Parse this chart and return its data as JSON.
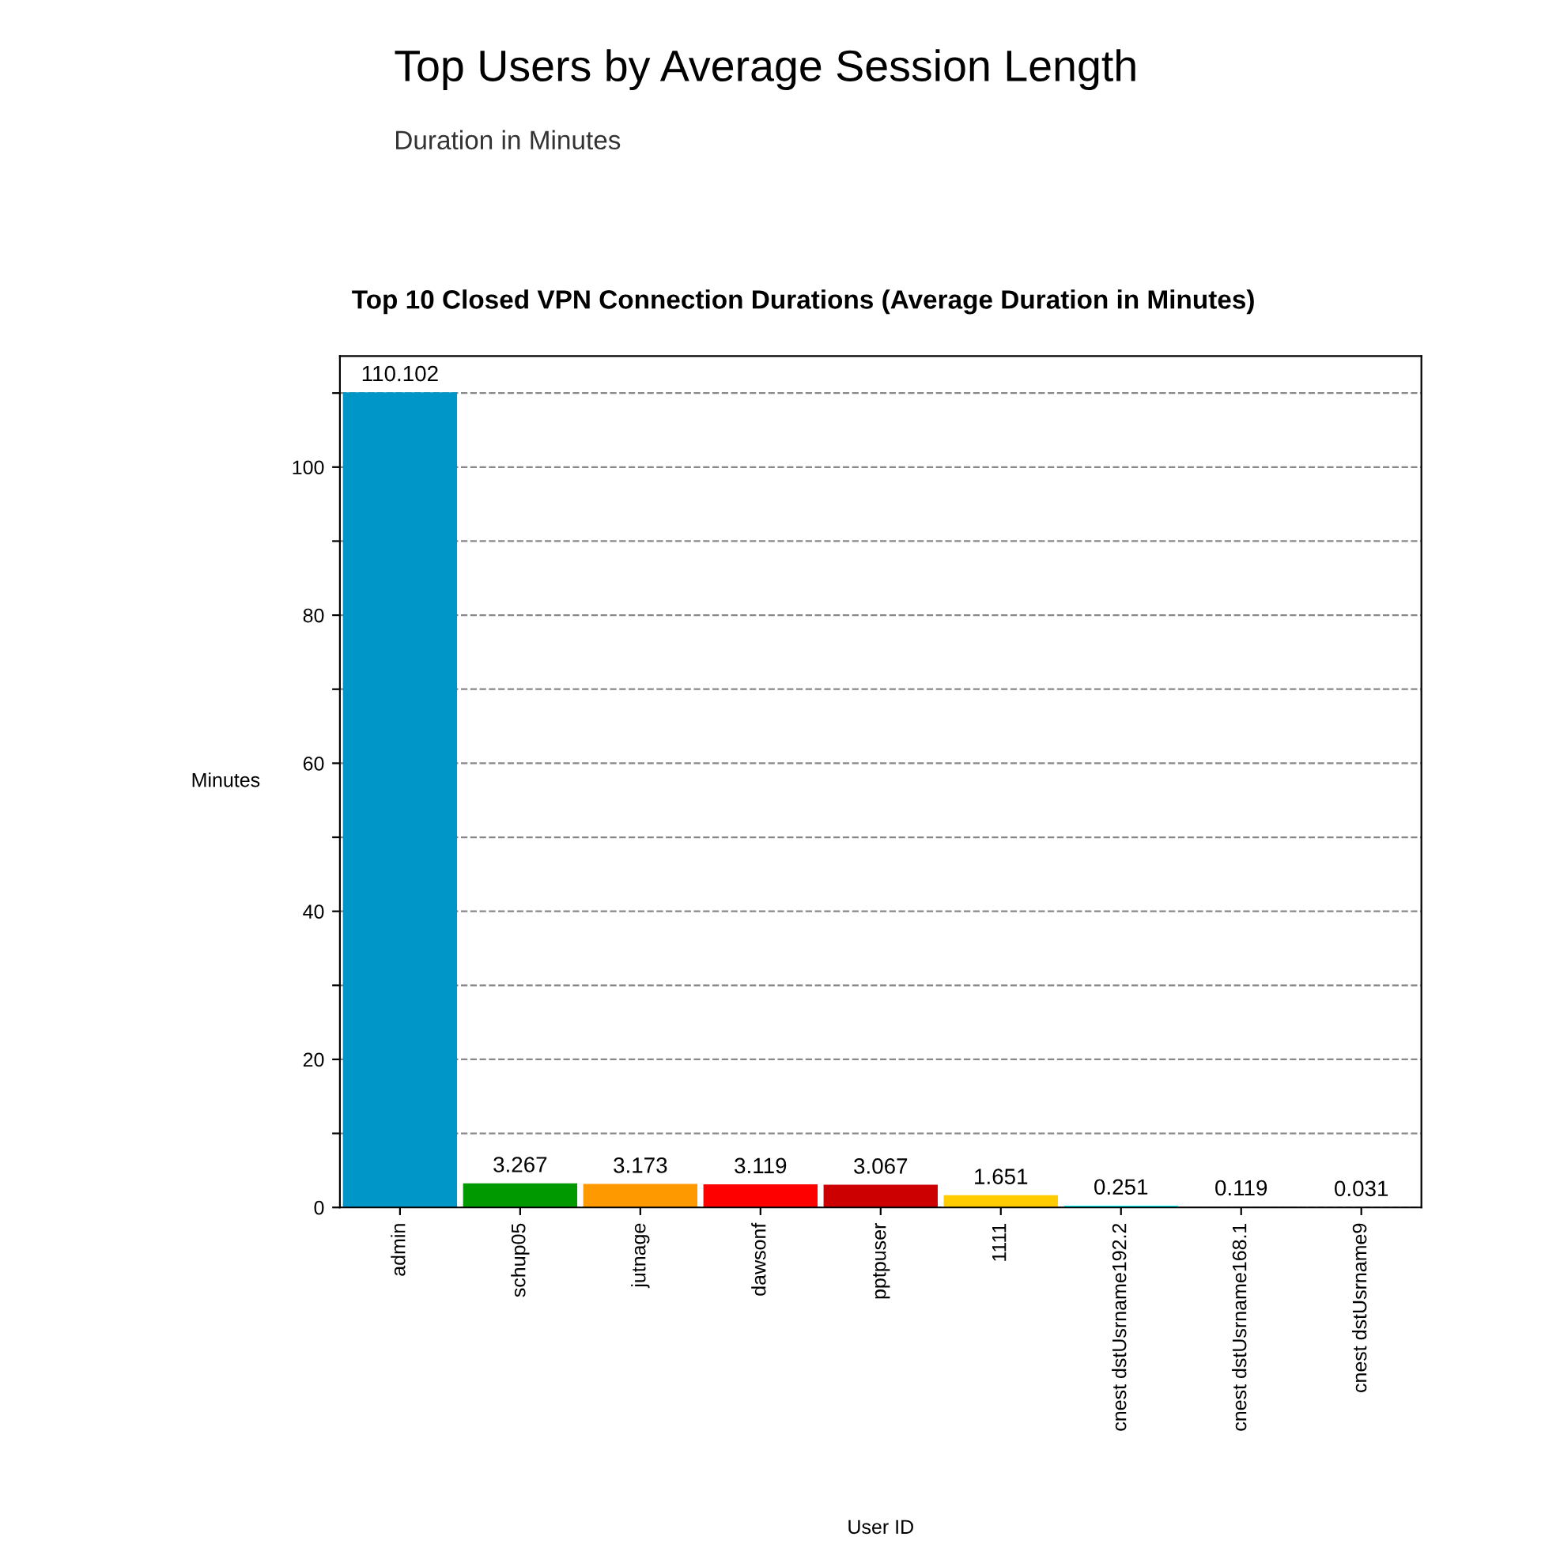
{
  "chart_data": {
    "type": "bar",
    "title": "Top Users by Average Session Length",
    "subtitle": "Duration in Minutes",
    "annotations": [
      "Top 10 Closed VPN Connection Durations (Average Duration in Minutes)"
    ],
    "xlabel": "User ID",
    "ylabel": "Minutes",
    "categories": [
      "admin",
      "schup05",
      "jutnage",
      "dawsonf",
      "pptpuser",
      "1111",
      "cnest dstUsrname192.2",
      "cnest dstUsrname168.1",
      "cnest dstUsrname9"
    ],
    "values": [
      110.102,
      3.267,
      3.173,
      3.119,
      3.067,
      1.651,
      0.251,
      0.119,
      0.031
    ],
    "colors": [
      "#0096c8",
      "#009900",
      "#ff9900",
      "#ff0000",
      "#cc0000",
      "#ffcc00",
      "#00ffff",
      "#888888",
      "#ffb6b6"
    ],
    "data_labels": true,
    "ylim": [
      0,
      115
    ],
    "yticks": [
      0,
      {
        "value": 10,
        "label": null
      },
      20,
      {
        "value": 30,
        "label": null
      },
      40,
      {
        "value": 50,
        "label": null
      },
      60,
      {
        "value": 70,
        "label": null
      },
      80,
      {
        "value": 90,
        "label": null
      },
      100,
      {
        "value": 110,
        "label": null
      }
    ],
    "grid": "y"
  }
}
